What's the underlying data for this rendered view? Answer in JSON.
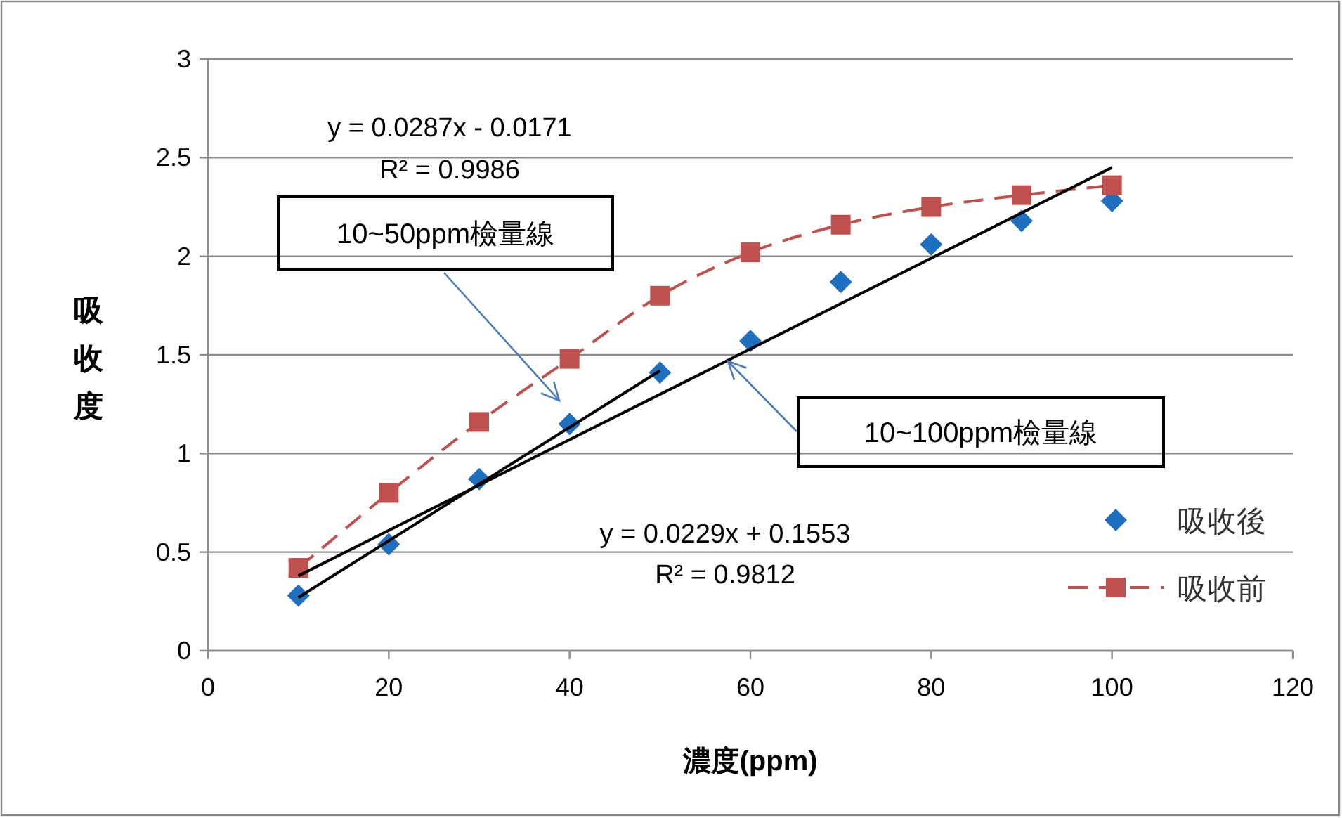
{
  "chart_data": {
    "type": "scatter",
    "xlabel": "濃度(ppm)",
    "ylabel": "吸收度",
    "xlim": [
      0,
      120
    ],
    "xticks": [
      0,
      20,
      40,
      60,
      80,
      100,
      120
    ],
    "ylim": [
      0,
      3
    ],
    "yticks": [
      0,
      0.5,
      1,
      1.5,
      2,
      2.5,
      3
    ],
    "grid": "y",
    "legend": "right",
    "series": [
      {
        "name": "吸收後",
        "marker": "diamond",
        "color": "#1f6fc0",
        "x": [
          10,
          20,
          30,
          40,
          50,
          60,
          70,
          80,
          90,
          100
        ],
        "values": [
          0.28,
          0.54,
          0.87,
          1.15,
          1.41,
          1.57,
          1.87,
          2.06,
          2.18,
          2.28
        ]
      },
      {
        "name": "吸收前",
        "type": "line",
        "marker": "square",
        "line_style": "dashed",
        "color": "#c0504d",
        "x": [
          10,
          20,
          30,
          40,
          50,
          60,
          70,
          80,
          90,
          100
        ],
        "values": [
          0.42,
          0.8,
          1.16,
          1.48,
          1.8,
          2.02,
          2.16,
          2.25,
          2.31,
          2.36
        ]
      },
      {
        "type": "line",
        "marker": "none",
        "line_style": "solid",
        "color": "#000000",
        "x": [
          10,
          50
        ],
        "values": [
          0.27,
          1.42
        ]
      },
      {
        "type": "line",
        "marker": "none",
        "line_style": "solid",
        "color": "#000000",
        "x": [
          10,
          100
        ],
        "values": [
          0.38,
          2.45
        ]
      }
    ],
    "annotations": [
      "y = 0.0287x - 0.0171",
      "R² = 0.9986",
      "y = 0.0229x + 0.1553",
      "R² = 0.9812",
      "10~50ppm檢量線",
      "10~100ppm檢量線"
    ]
  }
}
